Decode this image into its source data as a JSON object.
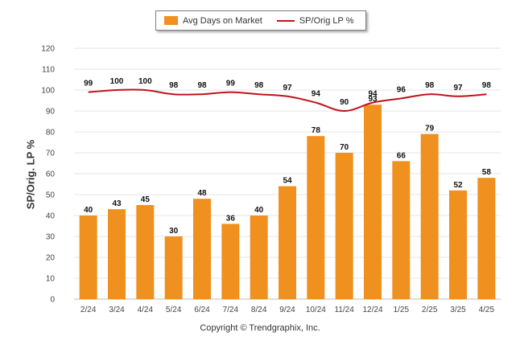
{
  "chart_data": {
    "type": "bar",
    "categories": [
      "2/24",
      "3/24",
      "4/24",
      "5/24",
      "6/24",
      "7/24",
      "8/24",
      "9/24",
      "10/24",
      "11/24",
      "12/24",
      "1/25",
      "2/25",
      "3/25",
      "4/25"
    ],
    "series": [
      {
        "name": "Avg Days on Market",
        "type": "bar",
        "color": "#f0901e",
        "values": [
          40,
          43,
          45,
          30,
          48,
          36,
          40,
          54,
          78,
          70,
          93,
          66,
          79,
          52,
          58
        ]
      },
      {
        "name": "SP/Orig LP %",
        "type": "line",
        "color": "#c0141c",
        "values": [
          99,
          100,
          100,
          98,
          98,
          99,
          98,
          97,
          94,
          90,
          94,
          96,
          98,
          97,
          98
        ]
      }
    ],
    "ylabel": "SP/Orig. LP %",
    "ylim": [
      0,
      120
    ],
    "yticks": [
      "0",
      "10",
      "20",
      "30",
      "40",
      "50",
      "60",
      "70",
      "80",
      "90",
      "100",
      "110",
      "120"
    ],
    "grid": true,
    "legend_position": "top-center"
  },
  "footer": {
    "copyright": "Copyright © Trendgraphix, Inc."
  }
}
